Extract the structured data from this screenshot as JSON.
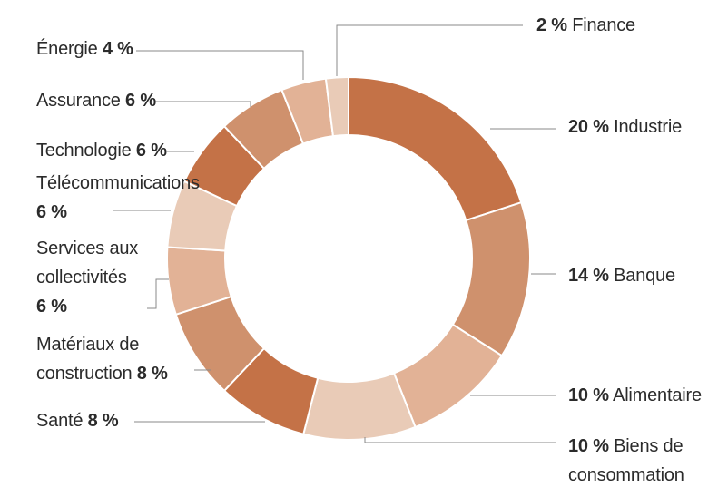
{
  "chart_data": {
    "type": "pie",
    "style": "donut",
    "slices": [
      {
        "label": "Industrie",
        "value": 20,
        "value_text": "20 %",
        "color": "#c47247"
      },
      {
        "label": "Banque",
        "value": 14,
        "value_text": "14 %",
        "color": "#cf916d"
      },
      {
        "label": "Alimentaire",
        "value": 10,
        "value_text": "10 %",
        "color": "#e2b296"
      },
      {
        "label": "Biens de consommation",
        "value": 10,
        "value_text": "10 %",
        "color": "#e9cbb7"
      },
      {
        "label": "Santé",
        "value": 8,
        "value_text": "8 %",
        "color": "#c47247"
      },
      {
        "label": "Matériaux de construction",
        "value": 8,
        "value_text": "8 %",
        "color": "#cf916d"
      },
      {
        "label": "Services aux collectivités",
        "value": 6,
        "value_text": "6 %",
        "color": "#e2b296"
      },
      {
        "label": "Télécommunications",
        "value": 6,
        "value_text": "6 %",
        "color": "#e9cbb7"
      },
      {
        "label": "Technologie",
        "value": 6,
        "value_text": "6 %",
        "color": "#c47247"
      },
      {
        "label": "Assurance",
        "value": 6,
        "value_text": "6 %",
        "color": "#cf916d"
      },
      {
        "label": "Énergie",
        "value": 4,
        "value_text": "4 %",
        "color": "#e2b296"
      },
      {
        "label": "Finance",
        "value": 2,
        "value_text": "2 %",
        "color": "#e9cbb7"
      }
    ],
    "title": "",
    "legend": "none"
  }
}
